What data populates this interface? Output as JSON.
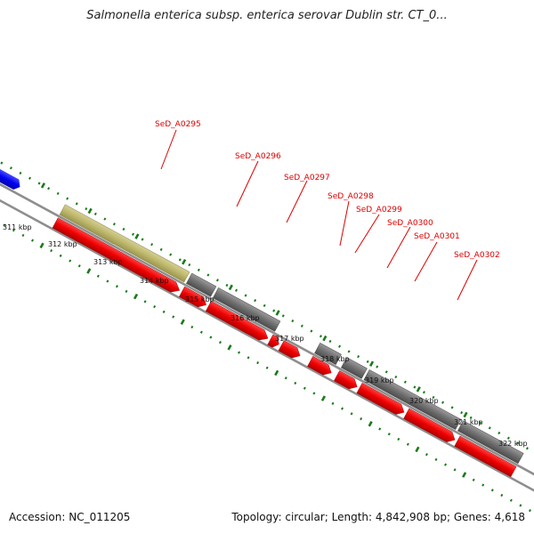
{
  "title": "Salmonella enterica subsp. enterica serovar Dublin str. CT_0...",
  "footer": {
    "accession": "Accession: NC_011205",
    "summary": "Topology: circular; Length: 4,842,908 bp; Genes: 4,618"
  },
  "gene_labels": [
    "SeD_A0295",
    "SeD_A0296",
    "SeD_A0297",
    "SeD_A0298",
    "SeD_A0299",
    "SeD_A0300",
    "SeD_A0301",
    "SeD_A0302"
  ],
  "kbp_labels": [
    "311 kbp",
    "312 kbp",
    "313 kbp",
    "314 kbp",
    "315 kbp",
    "316 kbp",
    "317 kbp",
    "318 kbp",
    "319 kbp",
    "320 kbp",
    "321 kbp",
    "322 kbp"
  ],
  "colors": {
    "gene_forward": "#ff0000",
    "gene_reverse_gray": "#777777",
    "gene_olive": "#bdb76b",
    "gene_blue": "#0000ff",
    "gene_light": "#c8c8c8",
    "ticks": "#1a7a1a",
    "label": "#dd0000"
  }
}
